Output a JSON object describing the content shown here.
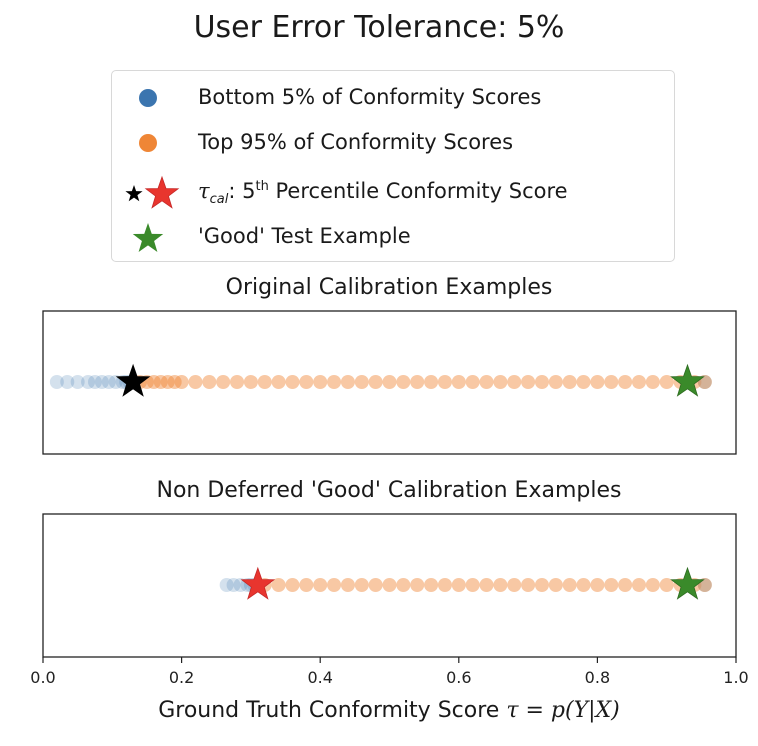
{
  "title": "User Error Tolerance: 5%",
  "legend": {
    "items": [
      {
        "label": "Bottom 5% of Conformity Scores",
        "marker": "circle",
        "color": "#3b75af"
      },
      {
        "label": "Top 95% of Conformity Scores",
        "marker": "circle",
        "color": "#ef8636"
      },
      {
        "label_prefix": "τ",
        "label_sub": "cal",
        "label_mid": ": 5",
        "label_sup": "th",
        "label_suffix": " Percentile Conformity Score",
        "marker": "star-pair",
        "colors": [
          "#000000",
          "#e8352e"
        ]
      },
      {
        "label": "'Good' Test Example",
        "marker": "star",
        "color": "#3a8a2a"
      }
    ]
  },
  "colors": {
    "bottom": "#3b75af",
    "top": "#ef8636",
    "threshold_original": "#000000",
    "threshold_nondeferred": "#e8352e",
    "good": "#3a8a2a"
  },
  "chart_data": [
    {
      "type": "scatter",
      "title": "Original Calibration Examples",
      "threshold": 0.13,
      "good_test_example": 0.93,
      "bottom_points": [
        0.02,
        0.035,
        0.05,
        0.065,
        0.075,
        0.085,
        0.095,
        0.105,
        0.115,
        0.12,
        0.125
      ],
      "top_points_range": [
        0.13,
        0.96
      ],
      "top_points": [
        0.14,
        0.15,
        0.16,
        0.17,
        0.18,
        0.19,
        0.2,
        0.22,
        0.24,
        0.26,
        0.28,
        0.3,
        0.32,
        0.34,
        0.36,
        0.38,
        0.4,
        0.42,
        0.44,
        0.46,
        0.48,
        0.5,
        0.52,
        0.54,
        0.56,
        0.58,
        0.6,
        0.62,
        0.64,
        0.66,
        0.68,
        0.7,
        0.72,
        0.74,
        0.76,
        0.78,
        0.8,
        0.82,
        0.84,
        0.86,
        0.88,
        0.9,
        0.92,
        0.94,
        0.955
      ]
    },
    {
      "type": "scatter",
      "title": "Non Deferred 'Good' Calibration Examples",
      "threshold": 0.31,
      "good_test_example": 0.93,
      "bottom_points": [
        0.265,
        0.275,
        0.285,
        0.295,
        0.3,
        0.305
      ],
      "top_points_range": [
        0.31,
        0.96
      ],
      "top_points": [
        0.32,
        0.34,
        0.36,
        0.38,
        0.4,
        0.42,
        0.44,
        0.46,
        0.48,
        0.5,
        0.52,
        0.54,
        0.56,
        0.58,
        0.6,
        0.62,
        0.64,
        0.66,
        0.68,
        0.7,
        0.72,
        0.74,
        0.76,
        0.78,
        0.8,
        0.82,
        0.84,
        0.86,
        0.88,
        0.9,
        0.92,
        0.94,
        0.955
      ]
    }
  ],
  "axis": {
    "xlim": [
      0.0,
      1.0
    ],
    "ticks": [
      "0.0",
      "0.2",
      "0.4",
      "0.6",
      "0.8",
      "1.0"
    ],
    "xlabel_text": "Ground Truth Conformity Score",
    "xlabel_math": "τ = p(Y|X)"
  }
}
